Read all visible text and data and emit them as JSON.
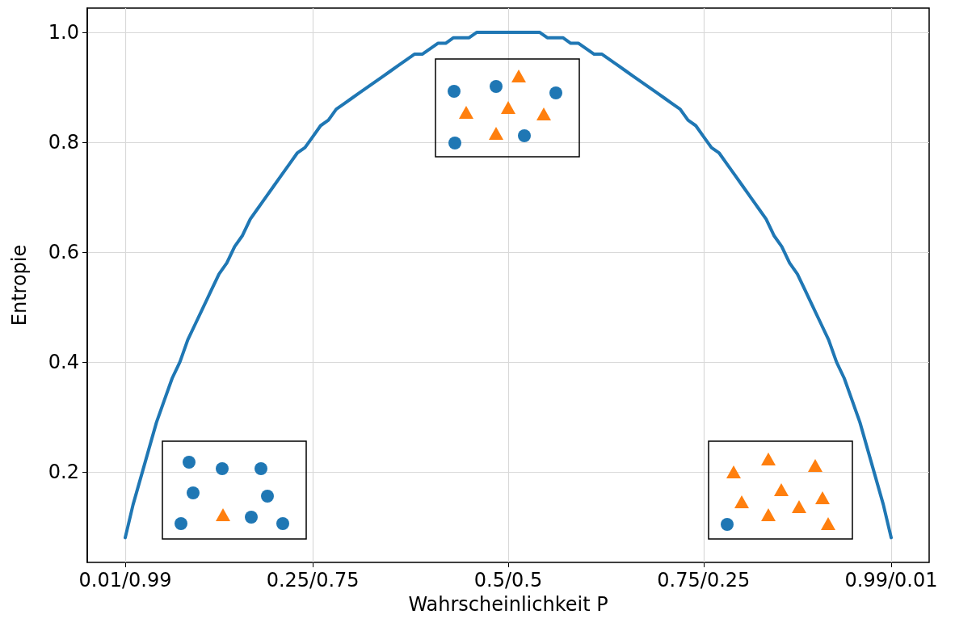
{
  "chart_data": {
    "type": "line",
    "xlabel": "Wahrscheinlichkeit P",
    "ylabel": "Entropie",
    "categories": [
      "0.01/0.99",
      null,
      null,
      null,
      null,
      null,
      null,
      null,
      null,
      null,
      null,
      null,
      null,
      null,
      null,
      null,
      null,
      null,
      null,
      null,
      null,
      null,
      null,
      null,
      "0.25/0.75",
      null,
      null,
      null,
      null,
      null,
      null,
      null,
      null,
      null,
      null,
      null,
      null,
      null,
      null,
      null,
      null,
      null,
      null,
      null,
      null,
      null,
      null,
      null,
      null,
      "0.5/0.5",
      null,
      null,
      null,
      null,
      null,
      null,
      null,
      null,
      null,
      null,
      null,
      null,
      null,
      null,
      null,
      null,
      null,
      null,
      null,
      null,
      null,
      null,
      null,
      null,
      "0.75/0.25",
      null,
      null,
      null,
      null,
      null,
      null,
      null,
      null,
      null,
      null,
      null,
      null,
      null,
      null,
      null,
      null,
      null,
      null,
      null,
      null,
      null,
      null,
      null,
      "0.99/0.01"
    ],
    "series": [
      {
        "color": "#1f77b4",
        "values": [
          0.08,
          0.14,
          0.19,
          0.24,
          0.29,
          0.33,
          0.37,
          0.4,
          0.44,
          0.47,
          0.5,
          0.53,
          0.56,
          0.58,
          0.61,
          0.63,
          0.66,
          0.68,
          0.7,
          0.72,
          0.74,
          0.76,
          0.78,
          0.79,
          0.81,
          0.83,
          0.84,
          0.86,
          0.87,
          0.88,
          0.89,
          0.9,
          0.91,
          0.92,
          0.93,
          0.94,
          0.95,
          0.96,
          0.96,
          0.97,
          0.98,
          0.98,
          0.99,
          0.99,
          0.99,
          1.0,
          1.0,
          1.0,
          1.0,
          1.0,
          1.0,
          1.0,
          1.0,
          1.0,
          0.99,
          0.99,
          0.99,
          0.98,
          0.98,
          0.97,
          0.96,
          0.96,
          0.95,
          0.94,
          0.93,
          0.92,
          0.91,
          0.9,
          0.89,
          0.88,
          0.87,
          0.86,
          0.84,
          0.83,
          0.81,
          0.79,
          0.78,
          0.76,
          0.74,
          0.72,
          0.7,
          0.68,
          0.66,
          0.63,
          0.61,
          0.58,
          0.56,
          0.53,
          0.5,
          0.47,
          0.44,
          0.4,
          0.37,
          0.33,
          0.29,
          0.24,
          0.19,
          0.14,
          0.08
        ]
      }
    ],
    "ylim": [
      0.035,
      1.044
    ],
    "yticks": [
      0.2,
      0.4,
      0.6,
      0.8,
      {
        "value": 1,
        "label": "1.0"
      }
    ],
    "grid": true,
    "marker": "none",
    "line_style": "solid"
  }
}
